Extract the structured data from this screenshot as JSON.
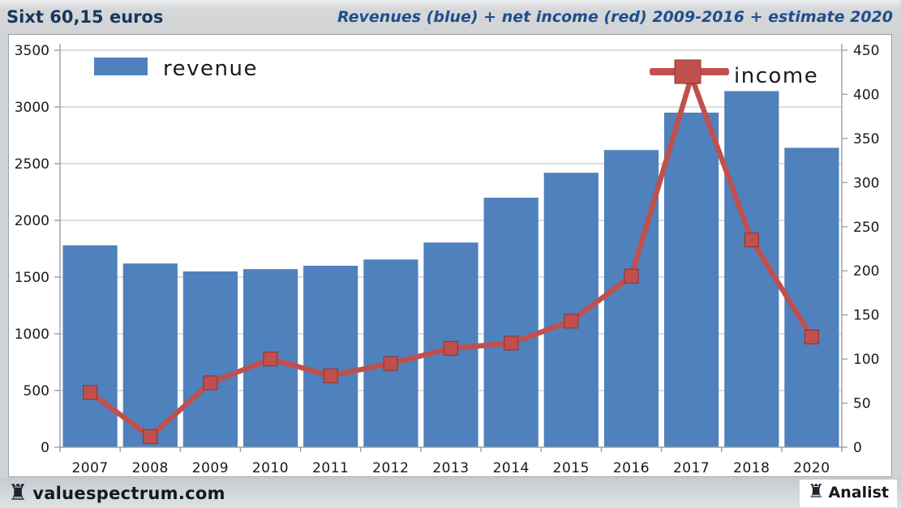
{
  "header": {
    "left_title": "Sixt 60,15 euros",
    "right_title": "Revenues (blue) + net income (red) 2009-2016 + estimate 2020"
  },
  "footer": {
    "brand": "valuespectrum.com",
    "right_label": "Analist"
  },
  "icons": {
    "rook": "♜"
  },
  "colors": {
    "bar_blue": "#4f81bd",
    "line_red": "#c0504d",
    "marker_border": "#953735",
    "title_blue": "#17375e",
    "grid": "#c6c6c6",
    "axis": "#9aa0a6",
    "text": "#1a1a1a"
  },
  "chart_data": {
    "type": "bar",
    "title": "Revenues (blue) + net income (red) 2009-2016 + estimate 2020",
    "categories": [
      "2007",
      "2008",
      "2009",
      "2010",
      "2011",
      "2012",
      "2013",
      "2014",
      "2015",
      "2016",
      "2017",
      "2018",
      "2020"
    ],
    "series": [
      {
        "name": "revenue",
        "type": "bar",
        "axis": "left",
        "color": "#4f81bd",
        "values": [
          1780,
          1620,
          1550,
          1570,
          1600,
          1655,
          1805,
          2200,
          2420,
          2620,
          2950,
          3140,
          2640
        ]
      },
      {
        "name": "income",
        "type": "line",
        "axis": "right",
        "color": "#c0504d",
        "values": [
          62,
          12,
          73,
          100,
          81,
          95,
          112,
          118,
          143,
          194,
          420,
          235,
          125
        ]
      }
    ],
    "left_axis": {
      "min": 0,
      "max": 3500,
      "step": 500
    },
    "right_axis": {
      "min": 0,
      "max": 450,
      "step": 50
    },
    "grid": "horizontal",
    "legend_position": "inside-top",
    "legend": [
      "revenue",
      "income"
    ]
  }
}
